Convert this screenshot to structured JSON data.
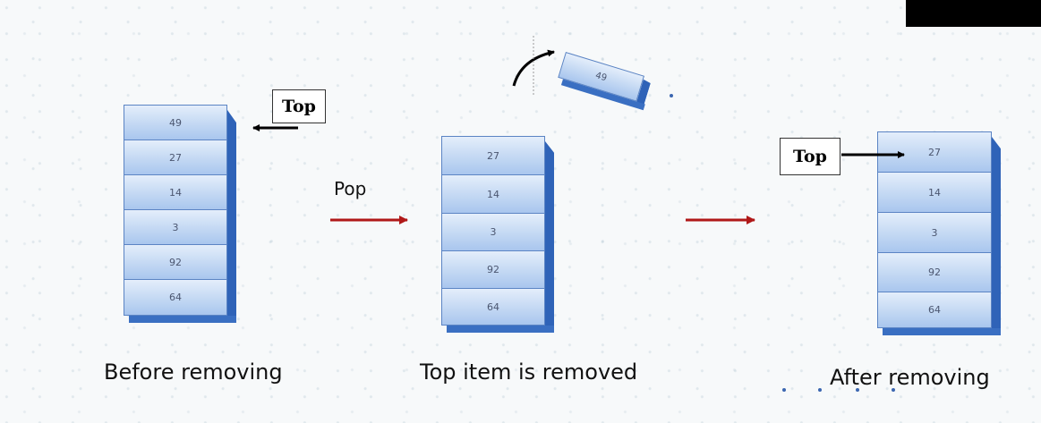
{
  "before": {
    "caption": "Before removing",
    "top_label": "Top",
    "items": [
      "49",
      "27",
      "14",
      "3",
      "92",
      "64"
    ]
  },
  "middle": {
    "caption": "Top item is removed",
    "operation_label": "Pop",
    "removed_item": "49",
    "items": [
      "27",
      "14",
      "3",
      "92",
      "64"
    ]
  },
  "after": {
    "caption": "After removing",
    "top_label": "Top",
    "items": [
      "27",
      "14",
      "3",
      "92",
      "64"
    ]
  },
  "colors": {
    "process_arrow": "#b01818",
    "pointer_arrow": "#000000",
    "box_edge": "#2f63b8"
  }
}
